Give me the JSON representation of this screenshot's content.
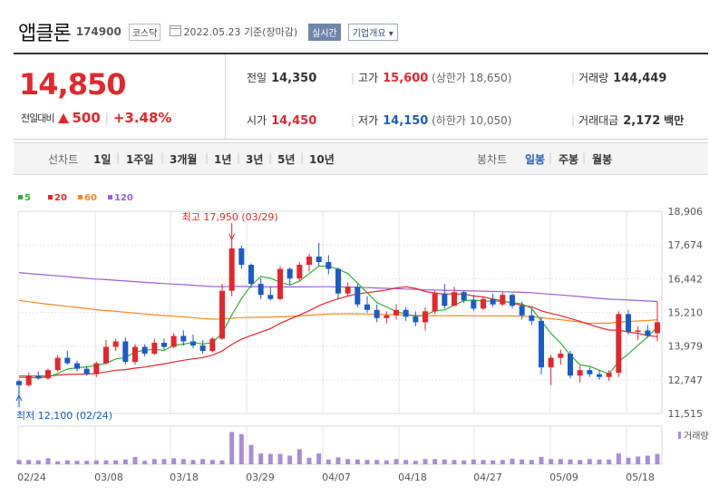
{
  "header": {
    "name": "앱클론",
    "code": "174900",
    "market": "코스닥",
    "date": "2022.05.23",
    "basis": "기준(장마감)",
    "live_btn": "실시간",
    "info_btn": "기업개요"
  },
  "quote": {
    "price": "14,850",
    "change_label": "전일대비",
    "change_amount": "500",
    "change_pct": "+3.48%",
    "fields": {
      "prev": {
        "label": "전일",
        "value": "14,350"
      },
      "high": {
        "label": "고가",
        "value": "15,600",
        "sub": "(상한가 18,650)"
      },
      "volume": {
        "label": "거래량",
        "value": "144,449"
      },
      "open": {
        "label": "시가",
        "value": "14,450"
      },
      "low": {
        "label": "저가",
        "value": "14,150",
        "sub": "(하한가 10,050)"
      },
      "amount": {
        "label": "거래대금",
        "value": "2,172",
        "unit": "백만"
      }
    }
  },
  "tabs": {
    "line_title": "선차트",
    "line_items": [
      "1일",
      "1주일",
      "3개월",
      "1년",
      "3년",
      "5년",
      "10년"
    ],
    "candle_title": "봉차트",
    "candle_items": [
      "일봉",
      "주봉",
      "월봉"
    ],
    "selected": "일봉"
  },
  "chart_data": {
    "type": "candlestick",
    "legend": [
      {
        "name": "5",
        "color": "#2fb12f"
      },
      {
        "name": "20",
        "color": "#e4262d"
      },
      {
        "name": "60",
        "color": "#f08a1c"
      },
      {
        "name": "120",
        "color": "#9c5fd1"
      }
    ],
    "y_ticks": [
      "18,906",
      "17,674",
      "16,442",
      "15,210",
      "13,979",
      "12,747",
      "11,515"
    ],
    "ylim": [
      11515,
      18906
    ],
    "x_ticks": [
      "02/24",
      "03/08",
      "03/18",
      "03/29",
      "04/07",
      "04/18",
      "04/27",
      "05/09",
      "05/18"
    ],
    "annotation_high": "최고 17,950 (03/29)",
    "annotation_low": "최저 12,100 (02/24)",
    "volume_label": "거래량",
    "up_color": "#e4262d",
    "down_color": "#1a5cc5",
    "candles": [
      [
        12700,
        12750,
        12100,
        12550
      ],
      [
        12550,
        13000,
        12500,
        12900
      ],
      [
        12900,
        13050,
        12750,
        12800
      ],
      [
        12800,
        13150,
        12750,
        13100
      ],
      [
        13100,
        13650,
        13050,
        13550
      ],
      [
        13550,
        13800,
        13300,
        13350
      ],
      [
        13350,
        13450,
        13050,
        13150
      ],
      [
        13150,
        13250,
        12900,
        12950
      ],
      [
        12950,
        13400,
        12850,
        13350
      ],
      [
        13350,
        14200,
        13300,
        13950
      ],
      [
        13950,
        14250,
        13800,
        14150
      ],
      [
        14150,
        14300,
        13300,
        13400
      ],
      [
        13400,
        14050,
        13300,
        13950
      ],
      [
        13950,
        14050,
        13600,
        13700
      ],
      [
        13700,
        14250,
        13650,
        14100
      ],
      [
        14100,
        14250,
        13850,
        13950
      ],
      [
        13950,
        14450,
        13900,
        14350
      ],
      [
        14350,
        14550,
        14000,
        14150
      ],
      [
        14150,
        14400,
        13900,
        14000
      ],
      [
        14000,
        14200,
        13700,
        13800
      ],
      [
        13800,
        14300,
        13750,
        14250
      ],
      [
        14250,
        16250,
        14200,
        16000
      ],
      [
        16000,
        17950,
        15800,
        17550
      ],
      [
        17550,
        17650,
        16800,
        16950
      ],
      [
        16950,
        17000,
        16100,
        16250
      ],
      [
        16250,
        16450,
        15700,
        15850
      ],
      [
        15850,
        16150,
        15650,
        15700
      ],
      [
        15700,
        16900,
        15650,
        16800
      ],
      [
        16800,
        16850,
        16200,
        16450
      ],
      [
        16450,
        17050,
        16350,
        16950
      ],
      [
        16950,
        17350,
        16700,
        17250
      ],
      [
        17250,
        17750,
        16900,
        17050
      ],
      [
        17050,
        17300,
        16600,
        16800
      ],
      [
        16800,
        16850,
        15700,
        15900
      ],
      [
        15900,
        16300,
        15800,
        16150
      ],
      [
        16150,
        16250,
        15400,
        15500
      ],
      [
        15500,
        15800,
        15200,
        15300
      ],
      [
        15300,
        15500,
        14850,
        15000
      ],
      [
        15000,
        15250,
        14800,
        15100
      ],
      [
        15100,
        15500,
        14950,
        15300
      ],
      [
        15300,
        15400,
        14900,
        15050
      ],
      [
        15050,
        15250,
        14700,
        14850
      ],
      [
        14850,
        15400,
        14550,
        15250
      ],
      [
        15250,
        16000,
        15150,
        15900
      ],
      [
        15900,
        16250,
        15350,
        15450
      ],
      [
        15450,
        16150,
        15450,
        15950
      ],
      [
        15950,
        16000,
        15550,
        15650
      ],
      [
        15650,
        15850,
        15250,
        15350
      ],
      [
        15350,
        15800,
        15300,
        15700
      ],
      [
        15700,
        15900,
        15400,
        15500
      ],
      [
        15500,
        15950,
        15450,
        15850
      ],
      [
        15850,
        15900,
        15350,
        15450
      ],
      [
        15450,
        15600,
        14950,
        15100
      ],
      [
        15100,
        15350,
        14750,
        14900
      ],
      [
        14900,
        15050,
        12950,
        13200
      ],
      [
        13200,
        13650,
        12550,
        13550
      ],
      [
        13550,
        13850,
        13300,
        13700
      ],
      [
        13700,
        13800,
        12800,
        12900
      ],
      [
        12900,
        13250,
        12650,
        13100
      ],
      [
        13100,
        13200,
        12850,
        12950
      ],
      [
        12950,
        13100,
        12750,
        12850
      ],
      [
        12850,
        13100,
        12700,
        13000
      ],
      [
        13000,
        15250,
        12850,
        15150
      ],
      [
        15150,
        15300,
        14400,
        14500
      ],
      [
        14500,
        14700,
        14200,
        14550
      ],
      [
        14550,
        14750,
        14300,
        14350
      ],
      [
        14450,
        15600,
        14150,
        14850
      ]
    ],
    "volume": [
      10,
      10,
      9,
      14,
      7,
      9,
      8,
      8,
      9,
      9,
      9,
      11,
      17,
      8,
      12,
      12,
      14,
      12,
      10,
      12,
      10,
      9,
      75,
      70,
      45,
      25,
      24,
      24,
      20,
      35,
      15,
      25,
      11,
      16,
      12,
      11,
      10,
      10,
      9,
      12,
      10,
      8,
      12,
      12,
      11,
      10,
      9,
      11,
      10,
      9,
      10,
      13,
      11,
      10,
      17,
      12,
      12,
      11,
      10,
      12,
      11,
      11,
      25,
      15,
      18,
      20,
      24
    ]
  }
}
